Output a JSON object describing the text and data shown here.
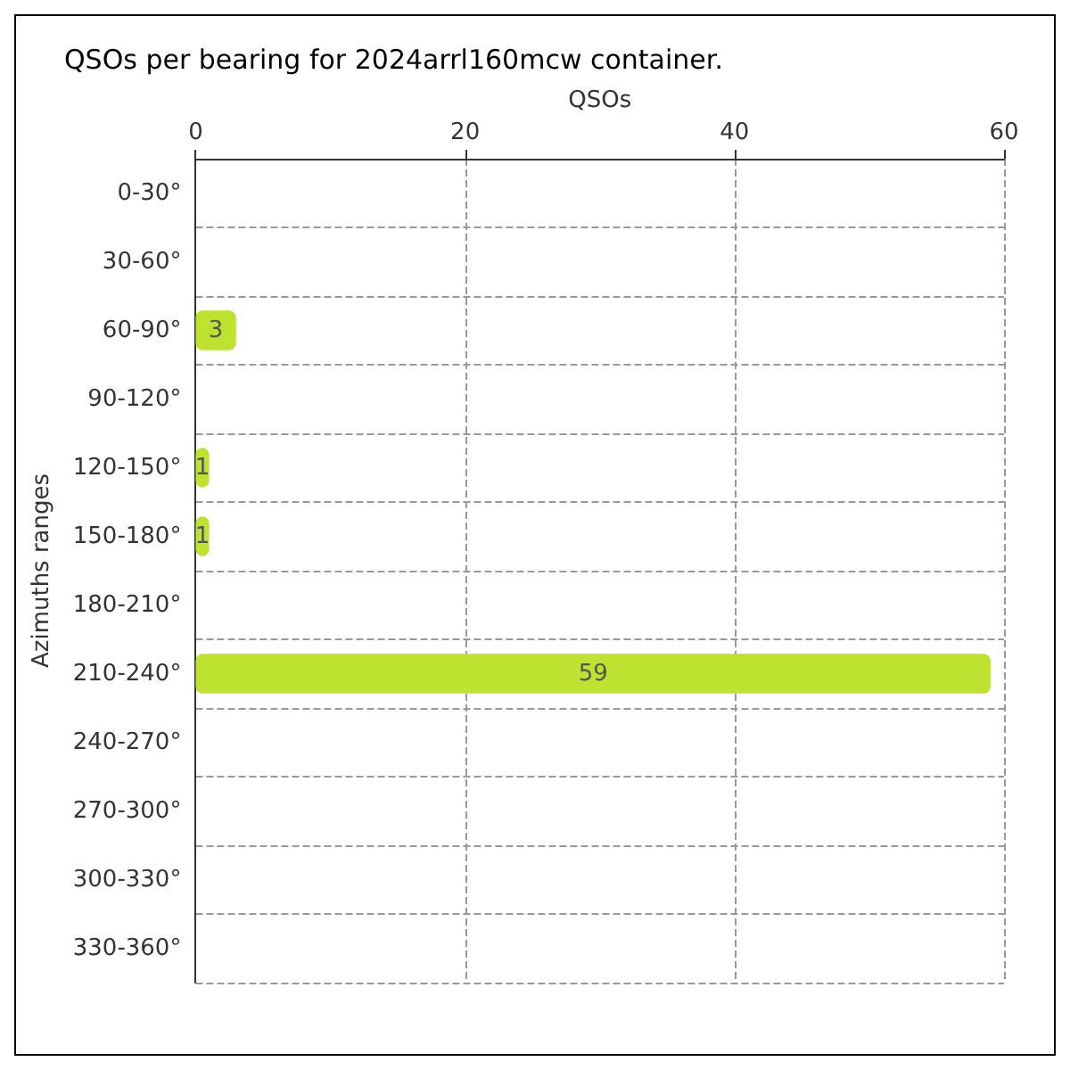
{
  "chart_data": {
    "type": "bar",
    "orientation": "horizontal",
    "title": "QSOs per bearing for 2024arrl160mcw container.",
    "xlabel": "QSOs",
    "ylabel": "Azimuths ranges",
    "categories": [
      "0-30°",
      "30-60°",
      "60-90°",
      "90-120°",
      "120-150°",
      "150-180°",
      "180-210°",
      "210-240°",
      "240-270°",
      "270-300°",
      "300-330°",
      "330-360°"
    ],
    "values": [
      0,
      0,
      3,
      0,
      1,
      1,
      0,
      59,
      0,
      0,
      0,
      0
    ],
    "value_labels": [
      null,
      null,
      "3",
      null,
      "1",
      "1",
      null,
      "59",
      null,
      null,
      null,
      null
    ],
    "color": "#bde22f",
    "xlim": [
      0,
      60
    ],
    "xticks": [
      0,
      20,
      40,
      60
    ],
    "grid": true
  }
}
